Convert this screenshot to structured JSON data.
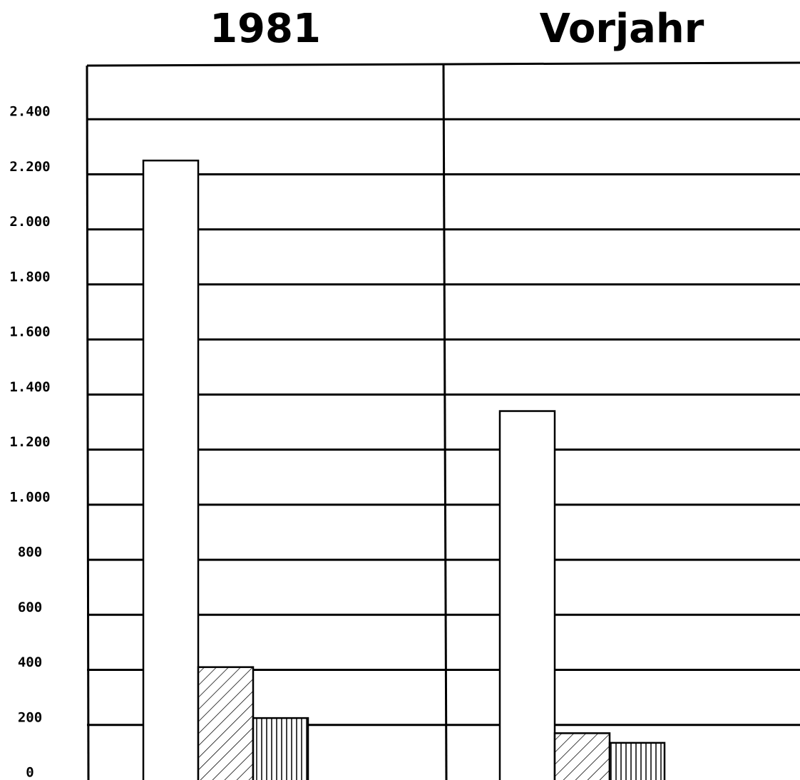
{
  "chart_data": {
    "type": "bar",
    "categories": [
      "1981",
      "Vorjahr"
    ],
    "series": [
      {
        "color": "#000000",
        "pattern": "none",
        "values": [
          2250,
          1340
        ]
      },
      {
        "color": "#000000",
        "pattern": "diagonal",
        "values": [
          410,
          170
        ]
      },
      {
        "color": "#000000",
        "pattern": "vertical",
        "values": [
          225,
          135
        ]
      }
    ],
    "ylim": [
      0,
      2600
    ],
    "yticks": [
      0,
      200,
      400,
      600,
      800,
      {
        "value": 1000,
        "label": "1.000"
      },
      {
        "value": 1200,
        "label": "1.200"
      },
      {
        "value": 1400,
        "label": "1.400"
      },
      {
        "value": 1600,
        "label": "1.600"
      },
      {
        "value": 1800,
        "label": "1.800"
      },
      {
        "value": 2000,
        "label": "2.000"
      },
      {
        "value": 2200,
        "label": "2.200"
      },
      {
        "value": 2400,
        "label": "2.400"
      }
    ],
    "grid": true
  }
}
